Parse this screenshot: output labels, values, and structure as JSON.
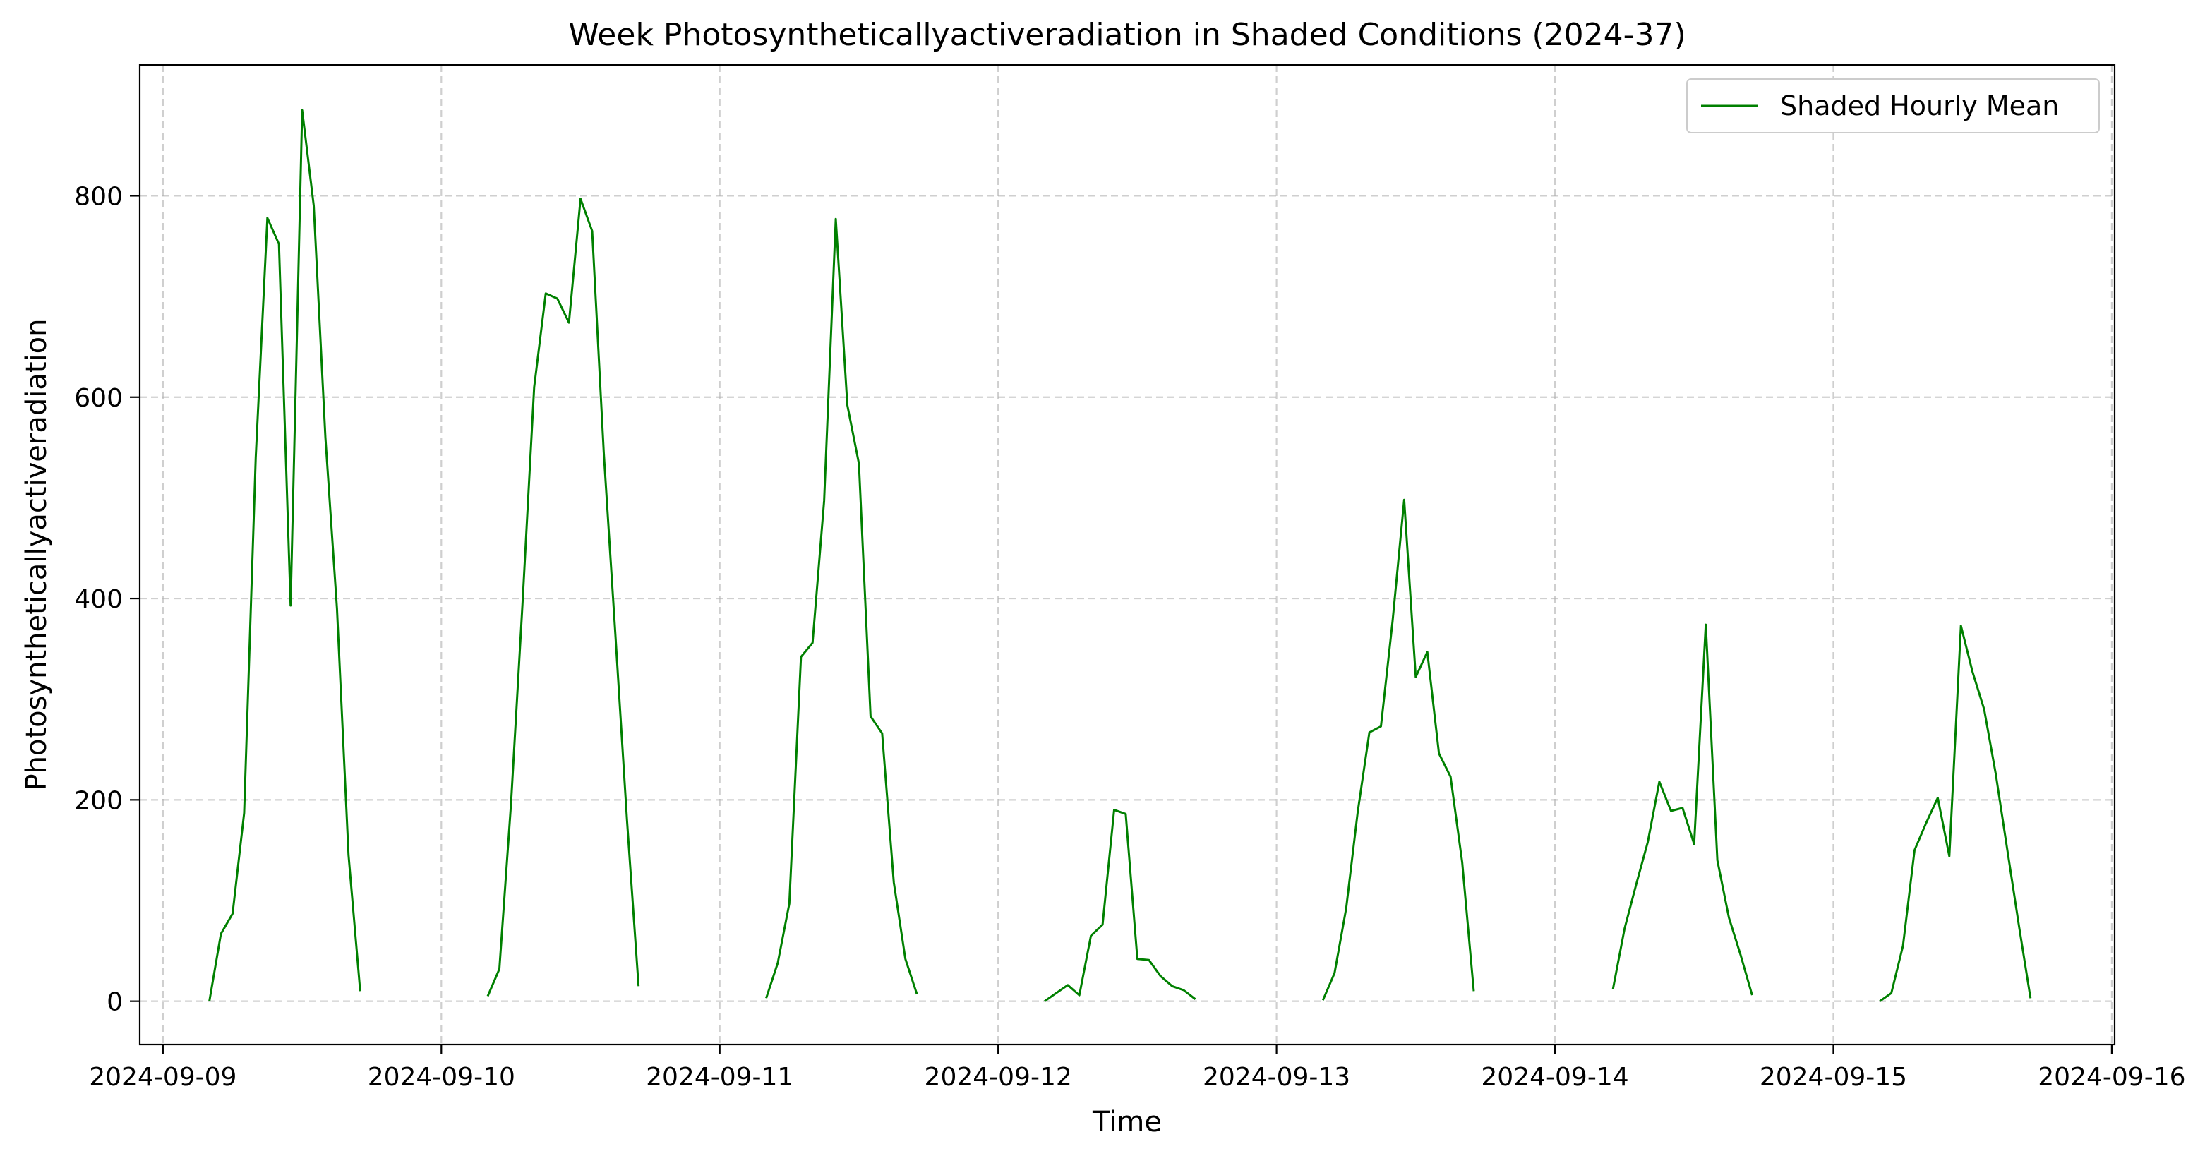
{
  "chart_data": {
    "type": "line",
    "title": "Week Photosyntheticallyactiveradiation in Shaded Conditions (2024-37)",
    "xlabel": "Time",
    "ylabel": "Photosyntheticallyactiveradiation",
    "x_ticks": [
      "2024-09-09",
      "2024-09-10",
      "2024-09-11",
      "2024-09-12",
      "2024-09-13",
      "2024-09-14",
      "2024-09-15",
      "2024-09-16"
    ],
    "y_ticks": [
      "0",
      "200",
      "400",
      "600",
      "800"
    ],
    "xlim": [
      "2024-09-08 22:00",
      "2024-09-16 00:15"
    ],
    "ylim": [
      -43,
      930
    ],
    "grid": true,
    "legend_position": "top-right",
    "color": "#008000",
    "series": [
      {
        "name": "Shaded Hourly Mean",
        "segments": [
          [
            [
              "2024-09-09 04:00",
              0
            ],
            [
              "2024-09-09 05:00",
              67
            ],
            [
              "2024-09-09 06:00",
              87
            ],
            [
              "2024-09-09 07:00",
              187
            ],
            [
              "2024-09-09 08:00",
              540
            ],
            [
              "2024-09-09 09:00",
              778
            ],
            [
              "2024-09-09 10:00",
              752
            ],
            [
              "2024-09-09 11:00",
              393
            ],
            [
              "2024-09-09 12:00",
              885
            ],
            [
              "2024-09-09 13:00",
              790
            ],
            [
              "2024-09-09 14:00",
              560
            ],
            [
              "2024-09-09 15:00",
              390
            ],
            [
              "2024-09-09 16:00",
              145
            ],
            [
              "2024-09-09 17:00",
              10
            ]
          ],
          [
            [
              "2024-09-10 04:00",
              5
            ],
            [
              "2024-09-10 05:00",
              32
            ],
            [
              "2024-09-10 06:00",
              195
            ],
            [
              "2024-09-10 07:00",
              395
            ],
            [
              "2024-09-10 08:00",
              610
            ],
            [
              "2024-09-10 09:00",
              703
            ],
            [
              "2024-09-10 10:00",
              698
            ],
            [
              "2024-09-10 11:00",
              674
            ],
            [
              "2024-09-10 12:00",
              797
            ],
            [
              "2024-09-10 13:00",
              765
            ],
            [
              "2024-09-10 14:00",
              545
            ],
            [
              "2024-09-10 15:00",
              365
            ],
            [
              "2024-09-10 16:00",
              180
            ],
            [
              "2024-09-10 17:00",
              15
            ]
          ],
          [
            [
              "2024-09-11 04:00",
              3
            ],
            [
              "2024-09-11 05:00",
              38
            ],
            [
              "2024-09-11 06:00",
              97
            ],
            [
              "2024-09-11 07:00",
              342
            ],
            [
              "2024-09-11 08:00",
              356
            ],
            [
              "2024-09-11 09:00",
              497
            ],
            [
              "2024-09-11 10:00",
              777
            ],
            [
              "2024-09-11 11:00",
              592
            ],
            [
              "2024-09-11 12:00",
              534
            ],
            [
              "2024-09-11 13:00",
              283
            ],
            [
              "2024-09-11 14:00",
              266
            ],
            [
              "2024-09-11 15:00",
              118
            ],
            [
              "2024-09-11 16:00",
              42
            ],
            [
              "2024-09-11 17:00",
              7
            ]
          ],
          [
            [
              "2024-09-12 04:00",
              0
            ],
            [
              "2024-09-12 05:00",
              8
            ],
            [
              "2024-09-12 06:00",
              16
            ],
            [
              "2024-09-12 07:00",
              6
            ],
            [
              "2024-09-12 08:00",
              65
            ],
            [
              "2024-09-12 09:00",
              76
            ],
            [
              "2024-09-12 10:00",
              190
            ],
            [
              "2024-09-12 11:00",
              186
            ],
            [
              "2024-09-12 12:00",
              42
            ],
            [
              "2024-09-12 13:00",
              41
            ],
            [
              "2024-09-12 14:00",
              25
            ],
            [
              "2024-09-12 15:00",
              15
            ],
            [
              "2024-09-12 16:00",
              11
            ],
            [
              "2024-09-12 17:00",
              2
            ]
          ],
          [
            [
              "2024-09-13 04:00",
              1
            ],
            [
              "2024-09-13 05:00",
              28
            ],
            [
              "2024-09-13 06:00",
              92
            ],
            [
              "2024-09-13 07:00",
              188
            ],
            [
              "2024-09-13 08:00",
              267
            ],
            [
              "2024-09-13 09:00",
              273
            ],
            [
              "2024-09-13 10:00",
              377
            ],
            [
              "2024-09-13 11:00",
              498
            ],
            [
              "2024-09-13 12:00",
              322
            ],
            [
              "2024-09-13 13:00",
              347
            ],
            [
              "2024-09-13 14:00",
              246
            ],
            [
              "2024-09-13 15:00",
              223
            ],
            [
              "2024-09-13 16:00",
              138
            ],
            [
              "2024-09-13 17:00",
              10
            ]
          ],
          [
            [
              "2024-09-14 05:00",
              12
            ],
            [
              "2024-09-14 06:00",
              72
            ],
            [
              "2024-09-14 07:00",
              116
            ],
            [
              "2024-09-14 08:00",
              158
            ],
            [
              "2024-09-14 09:00",
              218
            ],
            [
              "2024-09-14 10:00",
              189
            ],
            [
              "2024-09-14 11:00",
              192
            ],
            [
              "2024-09-14 12:00",
              156
            ],
            [
              "2024-09-14 13:00",
              374
            ],
            [
              "2024-09-14 14:00",
              140
            ],
            [
              "2024-09-14 15:00",
              83
            ],
            [
              "2024-09-14 16:00",
              46
            ],
            [
              "2024-09-14 17:00",
              6
            ]
          ],
          [
            [
              "2024-09-15 04:00",
              0
            ],
            [
              "2024-09-15 05:00",
              8
            ],
            [
              "2024-09-15 06:00",
              55
            ],
            [
              "2024-09-15 07:00",
              150
            ],
            [
              "2024-09-15 08:00",
              177
            ],
            [
              "2024-09-15 09:00",
              202
            ],
            [
              "2024-09-15 10:00",
              144
            ],
            [
              "2024-09-15 11:00",
              373
            ],
            [
              "2024-09-15 12:00",
              327
            ],
            [
              "2024-09-15 13:00",
              290
            ],
            [
              "2024-09-15 14:00",
              226
            ],
            [
              "2024-09-15 15:00",
              150
            ],
            [
              "2024-09-15 16:00",
              75
            ],
            [
              "2024-09-15 17:00",
              3
            ]
          ]
        ]
      }
    ]
  }
}
